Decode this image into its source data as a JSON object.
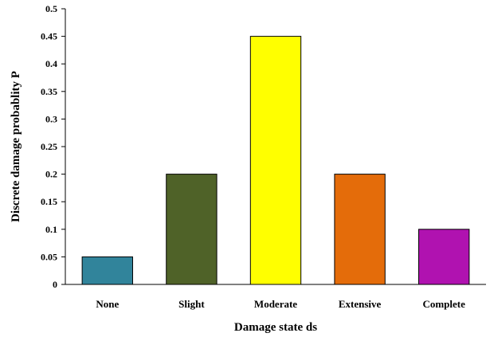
{
  "chart_data": {
    "type": "bar",
    "categories": [
      "None",
      "Slight",
      "Moderate",
      "Extensive",
      "Complete"
    ],
    "values": [
      0.05,
      0.2,
      0.45,
      0.2,
      0.1
    ],
    "colors": [
      "#31849b",
      "#4f6228",
      "#ffff00",
      "#e46c0a",
      "#b012b0"
    ],
    "xlabel": "Damage state ds",
    "ylabel": "Discrete damage probablity P",
    "ylim": [
      0,
      0.5
    ],
    "yticks": [
      "0",
      "0.05",
      "0.1",
      "0.15",
      "0.2",
      "0.25",
      "0.3",
      "0.35",
      "0.4",
      "0.45",
      "0.5"
    ],
    "grid": false,
    "legend": "none"
  }
}
